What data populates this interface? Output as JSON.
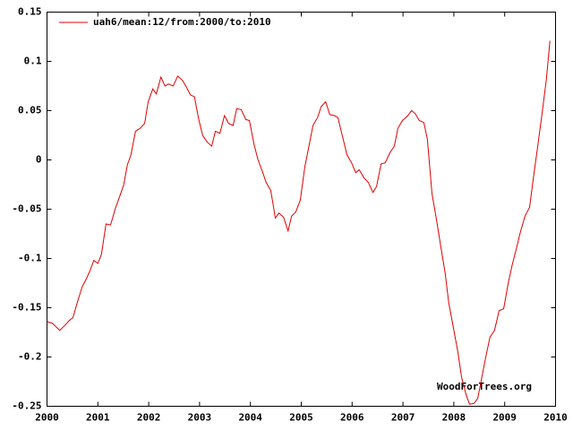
{
  "chart_data": {
    "type": "line",
    "annotation": "WoodForTrees.org",
    "legend": "top-left",
    "grid": false,
    "xlim": [
      2000,
      2010
    ],
    "xticks": [
      2000,
      2001,
      2002,
      2003,
      2004,
      2005,
      2006,
      2007,
      2008,
      2009,
      2010
    ],
    "ylim": [
      -0.25,
      0.15
    ],
    "yticks": [
      0.15,
      0.1,
      0.05,
      0,
      -0.05,
      -0.1,
      -0.15,
      -0.2,
      -0.25
    ],
    "x": [
      2000.0,
      2000.11,
      2000.25,
      2000.35,
      2000.44,
      2000.51,
      2000.6,
      2000.69,
      2000.77,
      2000.85,
      2000.92,
      2001.0,
      2001.07,
      2001.16,
      2001.25,
      2001.34,
      2001.43,
      2001.51,
      2001.58,
      2001.65,
      2001.74,
      2001.83,
      2001.92,
      2001.99,
      2002.08,
      2002.15,
      2002.24,
      2002.32,
      2002.39,
      2002.48,
      2002.57,
      2002.66,
      2002.73,
      2002.82,
      2002.9,
      2002.98,
      2003.06,
      2003.15,
      2003.24,
      2003.31,
      2003.4,
      2003.49,
      2003.57,
      2003.66,
      2003.73,
      2003.82,
      2003.91,
      2003.98,
      2004.07,
      2004.15,
      2004.23,
      2004.31,
      2004.4,
      2004.49,
      2004.56,
      2004.65,
      2004.74,
      2004.81,
      2004.89,
      2004.98,
      2005.07,
      2005.14,
      2005.23,
      2005.32,
      2005.39,
      2005.48,
      2005.56,
      2005.65,
      2005.72,
      2005.81,
      2005.9,
      2005.99,
      2006.07,
      2006.14,
      2006.23,
      2006.32,
      2006.41,
      2006.48,
      2006.57,
      2006.65,
      2006.74,
      2006.83,
      2006.9,
      2006.99,
      2007.08,
      2007.17,
      2007.24,
      2007.32,
      2007.41,
      2007.48,
      2007.57,
      2007.66,
      2007.75,
      2007.83,
      2007.9,
      2007.99,
      2008.08,
      2008.15,
      2008.24,
      2008.31,
      2008.4,
      2008.47,
      2008.56,
      2008.64,
      2008.71,
      2008.8,
      2008.89,
      2008.98,
      2009.07,
      2009.15,
      2009.23,
      2009.31,
      2009.4,
      2009.49,
      2009.56,
      2009.65,
      2009.74,
      2009.82,
      2009.89
    ],
    "series": [
      {
        "name": "uah6/mean:12/from:2000/to:2010",
        "color": "#e00000",
        "values": [
          -0.164,
          -0.166,
          -0.173,
          -0.168,
          -0.163,
          -0.16,
          -0.144,
          -0.129,
          -0.121,
          -0.112,
          -0.102,
          -0.105,
          -0.096,
          -0.065,
          -0.066,
          -0.05,
          -0.037,
          -0.025,
          -0.005,
          0.005,
          0.029,
          0.032,
          0.037,
          0.059,
          0.072,
          0.067,
          0.084,
          0.075,
          0.077,
          0.075,
          0.085,
          0.081,
          0.075,
          0.066,
          0.064,
          0.042,
          0.025,
          0.018,
          0.014,
          0.029,
          0.027,
          0.045,
          0.037,
          0.035,
          0.052,
          0.051,
          0.041,
          0.04,
          0.016,
          0.0,
          -0.011,
          -0.023,
          -0.031,
          -0.059,
          -0.054,
          -0.058,
          -0.072,
          -0.057,
          -0.053,
          -0.041,
          -0.007,
          0.011,
          0.035,
          0.043,
          0.054,
          0.059,
          0.046,
          0.045,
          0.043,
          0.024,
          0.005,
          -0.003,
          -0.013,
          -0.01,
          -0.018,
          -0.023,
          -0.033,
          -0.027,
          -0.004,
          -0.003,
          0.007,
          0.014,
          0.032,
          0.04,
          0.044,
          0.05,
          0.047,
          0.04,
          0.038,
          0.021,
          -0.034,
          -0.061,
          -0.09,
          -0.115,
          -0.145,
          -0.17,
          -0.195,
          -0.22,
          -0.238,
          -0.248,
          -0.247,
          -0.242,
          -0.218,
          -0.197,
          -0.18,
          -0.173,
          -0.153,
          -0.151,
          -0.125,
          -0.106,
          -0.09,
          -0.073,
          -0.057,
          -0.048,
          -0.02,
          0.014,
          0.049,
          0.082,
          0.121
        ]
      }
    ]
  }
}
